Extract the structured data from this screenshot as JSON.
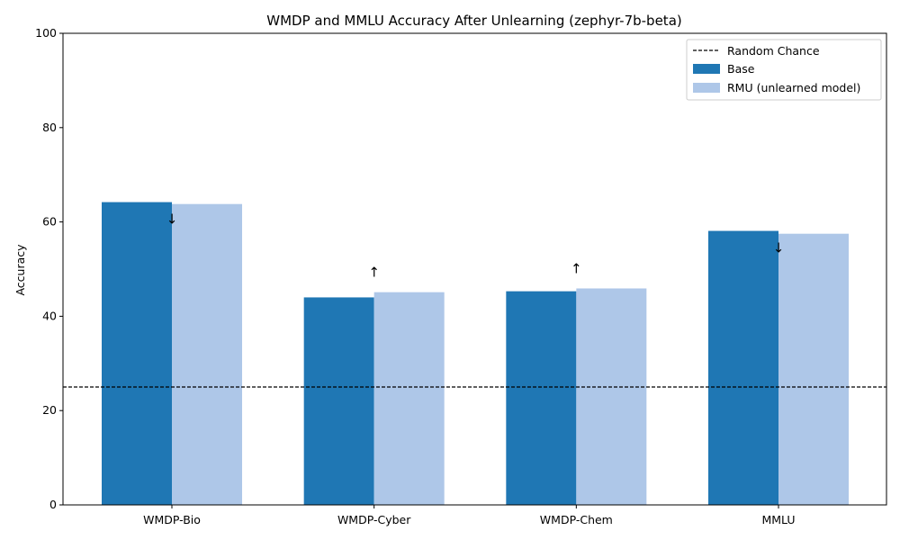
{
  "chart_data": {
    "type": "bar",
    "title": "WMDP and MMLU Accuracy After Unlearning (zephyr-7b-beta)",
    "xlabel": "",
    "ylabel": "Accuracy",
    "ylim": [
      0,
      100
    ],
    "yticks": [
      "0",
      "20",
      "40",
      "60",
      "80",
      "100"
    ],
    "categories": [
      "WMDP-Bio",
      "WMDP-Cyber",
      "WMDP-Chem",
      "MMLU"
    ],
    "series": [
      {
        "name": "Base",
        "values": [
          64.2,
          44.0,
          45.3,
          58.1
        ],
        "color": "#1f77b4"
      },
      {
        "name": "RMU (unlearned model)",
        "values": [
          63.8,
          45.1,
          45.9,
          57.5
        ],
        "color": "#aec7e8"
      }
    ],
    "reference_line": {
      "name": "Random Chance",
      "value": 25,
      "style": "dashed",
      "color": "#000000"
    },
    "annotations": [
      "↓",
      "↑",
      "↑",
      "↓"
    ],
    "grid": false,
    "legend_position": "top-right"
  }
}
